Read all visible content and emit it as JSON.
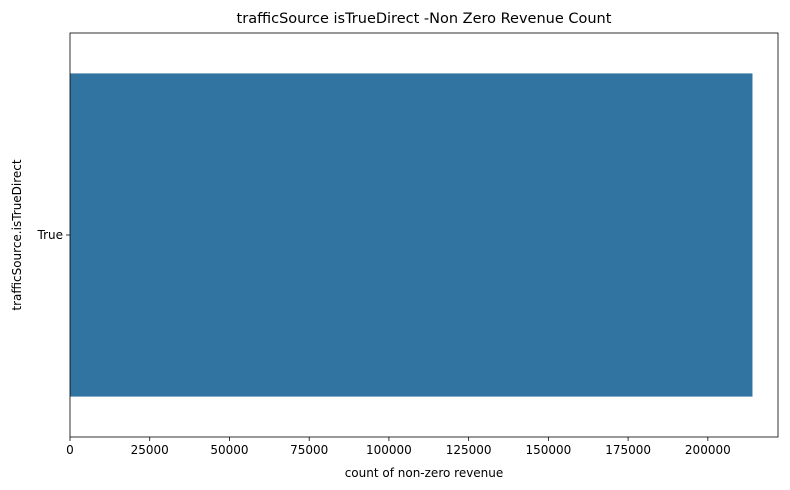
{
  "chart_data": {
    "type": "bar",
    "orientation": "horizontal",
    "title": "trafficSource isTrueDirect -Non Zero Revenue Count",
    "xlabel": "count of non-zero revenue",
    "ylabel": "trafficSource.isTrueDirect",
    "categories": [
      "True"
    ],
    "values": [
      214000
    ],
    "xlim": [
      0,
      222000
    ],
    "xticks": [
      0,
      25000,
      50000,
      75000,
      100000,
      125000,
      150000,
      175000,
      200000
    ],
    "grid": false,
    "colors": {
      "bar": "#3274a1"
    }
  }
}
